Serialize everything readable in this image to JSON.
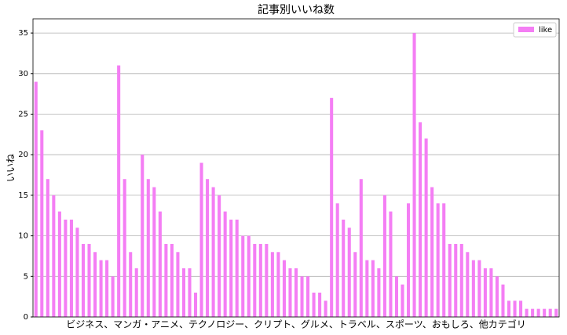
{
  "chart_data": {
    "type": "bar",
    "title": "記事別いいね数",
    "xlabel": "ビジネス、マンガ・アニメ、テクノロジー、クリプト、グルメ、トラベル、スポーツ、おもしろ、他カテゴリ",
    "ylabel": "いいね",
    "series": [
      {
        "name": "like",
        "color": "#f47ef4",
        "values": [
          29,
          23,
          17,
          15,
          13,
          12,
          12,
          11,
          9,
          9,
          8,
          7,
          7,
          5,
          31,
          17,
          8,
          6,
          20,
          17,
          16,
          13,
          9,
          9,
          8,
          6,
          6,
          3,
          19,
          17,
          16,
          15,
          13,
          12,
          12,
          10,
          10,
          9,
          9,
          9,
          8,
          8,
          7,
          6,
          6,
          5,
          5,
          3,
          3,
          2,
          27,
          14,
          12,
          11,
          8,
          17,
          7,
          7,
          6,
          15,
          13,
          5,
          4,
          14,
          35,
          24,
          22,
          16,
          14,
          14,
          9,
          9,
          9,
          8,
          7,
          7,
          6,
          6,
          5,
          4,
          2,
          2,
          2,
          1,
          1,
          1,
          1,
          1,
          1
        ]
      }
    ],
    "ylim": [
      0,
      36.75
    ],
    "yticks": [
      0,
      5,
      10,
      15,
      20,
      25,
      30,
      35
    ],
    "grid": true,
    "legend": "upper right"
  }
}
